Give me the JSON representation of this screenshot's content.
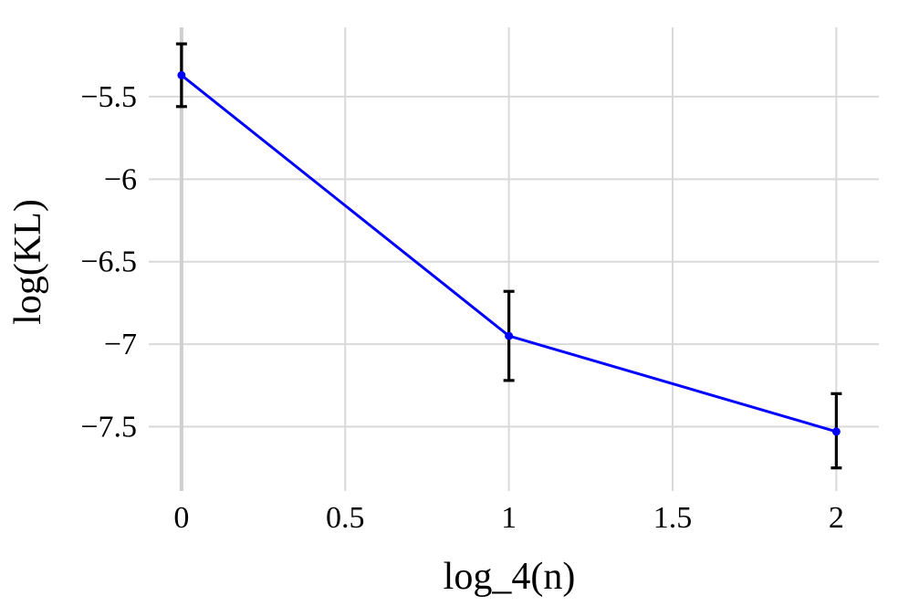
{
  "chart_data": {
    "type": "line",
    "xlabel": "log_4(n)",
    "ylabel": "log(KL)",
    "xlim": [
      -0.1,
      2.13
    ],
    "ylim": [
      -7.89,
      -5.08
    ],
    "x_ticks": [
      0,
      0.5,
      1,
      1.5,
      2
    ],
    "x_tick_labels": [
      "0",
      "0.5",
      "1",
      "1.5",
      "2"
    ],
    "y_ticks": [
      -5.5,
      -6,
      -6.5,
      -7,
      -7.5
    ],
    "y_tick_labels": [
      "−5.5",
      "−6",
      "−6.5",
      "−7",
      "−7.5"
    ],
    "grid": true,
    "series": [
      {
        "x": [
          0,
          1,
          2
        ],
        "y": [
          -5.37,
          -6.95,
          -7.53
        ],
        "error_low": [
          -5.56,
          -7.22,
          -7.75
        ],
        "error_high": [
          -5.18,
          -6.68,
          -7.3
        ],
        "color": "#0000ff"
      }
    ],
    "error_bar_color": "#000000"
  }
}
